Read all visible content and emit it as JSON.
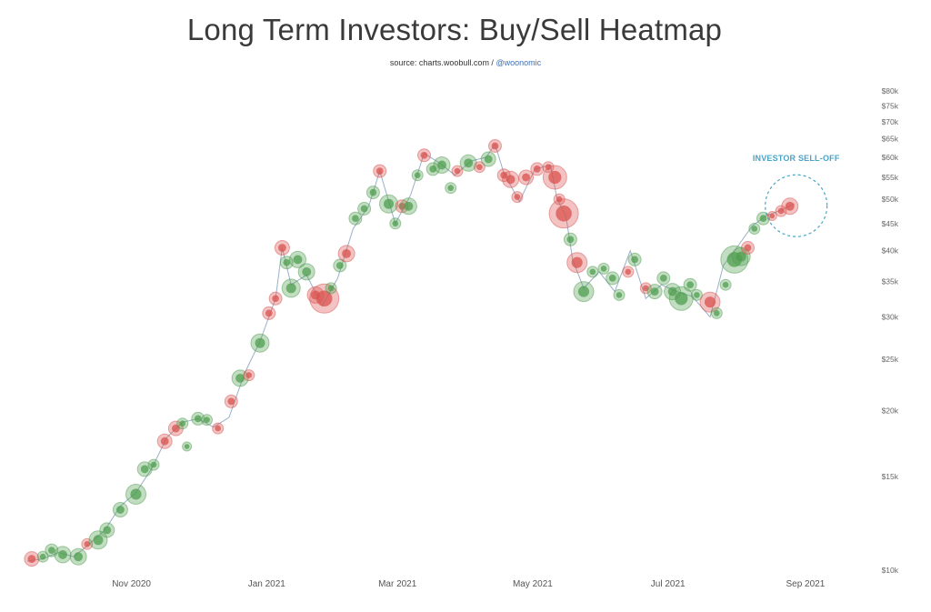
{
  "chart_data": {
    "type": "scatter",
    "title": "Long Term Investors: Buy/Sell Heatmap",
    "subtitle": {
      "text": "source: charts.woobull.com / ",
      "handle": "@woonomic"
    },
    "xlabel": "",
    "ylabel": "",
    "y_scale": "log",
    "ylim": [
      10000,
      80000
    ],
    "xlim": [
      "2020-09-15",
      "2021-09-15"
    ],
    "x_ticks": [
      {
        "date": "2020-11-01",
        "label": "Nov 2020"
      },
      {
        "date": "2021-01-01",
        "label": "Jan 2021"
      },
      {
        "date": "2021-03-01",
        "label": "Mar 2021"
      },
      {
        "date": "2021-05-01",
        "label": "May 2021"
      },
      {
        "date": "2021-07-01",
        "label": "Jul 2021"
      },
      {
        "date": "2021-09-01",
        "label": "Sep 2021"
      }
    ],
    "y_ticks": [
      {
        "value": 10000,
        "label": "$10k"
      },
      {
        "value": 15000,
        "label": "$15k"
      },
      {
        "value": 20000,
        "label": "$20k"
      },
      {
        "value": 25000,
        "label": "$25k"
      },
      {
        "value": 30000,
        "label": "$30k"
      },
      {
        "value": 35000,
        "label": "$35k"
      },
      {
        "value": 40000,
        "label": "$40k"
      },
      {
        "value": 45000,
        "label": "$45k"
      },
      {
        "value": 50000,
        "label": "$50k"
      },
      {
        "value": 55000,
        "label": "$55k"
      },
      {
        "value": 60000,
        "label": "$60k"
      },
      {
        "value": 65000,
        "label": "$65k"
      },
      {
        "value": 70000,
        "label": "$70k"
      },
      {
        "value": 75000,
        "label": "$75k"
      },
      {
        "value": 80000,
        "label": "$80k"
      }
    ],
    "grid": false,
    "colors": {
      "buy": "#4f9e4f",
      "sell": "#d9534f",
      "line": "#6f8fb0",
      "annotation": "#4aa3c9"
    },
    "annotation": {
      "text": "INVESTOR SELL-OFF",
      "date": "2021-08-27",
      "value": 49000
    },
    "price": [
      [
        "2020-09-15",
        10400
      ],
      [
        "2020-09-22",
        10500
      ],
      [
        "2020-09-29",
        10800
      ],
      [
        "2020-10-06",
        10600
      ],
      [
        "2020-10-13",
        11200
      ],
      [
        "2020-10-20",
        11900
      ],
      [
        "2020-10-27",
        13200
      ],
      [
        "2020-11-03",
        14000
      ],
      [
        "2020-11-10",
        15500
      ],
      [
        "2020-11-17",
        17800
      ],
      [
        "2020-11-24",
        19000
      ],
      [
        "2020-12-01",
        19300
      ],
      [
        "2020-12-08",
        18600
      ],
      [
        "2020-12-15",
        19400
      ],
      [
        "2020-12-22",
        23500
      ],
      [
        "2020-12-29",
        27000
      ],
      [
        "2021-01-05",
        32500
      ],
      [
        "2021-01-08",
        40500
      ],
      [
        "2021-01-12",
        34500
      ],
      [
        "2021-01-19",
        36000
      ],
      [
        "2021-01-26",
        31500
      ],
      [
        "2021-02-02",
        35500
      ],
      [
        "2021-02-09",
        44000
      ],
      [
        "2021-02-16",
        48500
      ],
      [
        "2021-02-21",
        56500
      ],
      [
        "2021-02-28",
        45000
      ],
      [
        "2021-03-07",
        51000
      ],
      [
        "2021-03-13",
        61000
      ],
      [
        "2021-03-20",
        58500
      ],
      [
        "2021-03-27",
        55500
      ],
      [
        "2021-04-03",
        59000
      ],
      [
        "2021-04-10",
        60000
      ],
      [
        "2021-04-14",
        63500
      ],
      [
        "2021-04-18",
        56000
      ],
      [
        "2021-04-25",
        49500
      ],
      [
        "2021-05-02",
        57000
      ],
      [
        "2021-05-09",
        58000
      ],
      [
        "2021-05-12",
        50000
      ],
      [
        "2021-05-16",
        46500
      ],
      [
        "2021-05-19",
        38500
      ],
      [
        "2021-05-24",
        34000
      ],
      [
        "2021-05-31",
        36500
      ],
      [
        "2021-06-07",
        33500
      ],
      [
        "2021-06-14",
        40000
      ],
      [
        "2021-06-21",
        32500
      ],
      [
        "2021-06-28",
        34500
      ],
      [
        "2021-07-05",
        33500
      ],
      [
        "2021-07-12",
        32800
      ],
      [
        "2021-07-20",
        30000
      ],
      [
        "2021-07-26",
        37500
      ],
      [
        "2021-08-01",
        40500
      ],
      [
        "2021-08-08",
        44500
      ],
      [
        "2021-08-14",
        46500
      ],
      [
        "2021-08-20",
        47500
      ],
      [
        "2021-08-27",
        49000
      ]
    ],
    "bubbles": [
      [
        "2020-09-17",
        10500,
        "sell",
        8
      ],
      [
        "2020-09-22",
        10600,
        "buy",
        6
      ],
      [
        "2020-09-26",
        10900,
        "buy",
        7
      ],
      [
        "2020-10-01",
        10700,
        "buy",
        9
      ],
      [
        "2020-10-08",
        10600,
        "buy",
        9
      ],
      [
        "2020-10-12",
        11200,
        "sell",
        6
      ],
      [
        "2020-10-17",
        11400,
        "buy",
        10
      ],
      [
        "2020-10-21",
        11900,
        "buy",
        8
      ],
      [
        "2020-10-27",
        13000,
        "buy",
        8
      ],
      [
        "2020-11-03",
        13900,
        "buy",
        11
      ],
      [
        "2020-11-07",
        15500,
        "buy",
        8
      ],
      [
        "2020-11-11",
        15800,
        "buy",
        6
      ],
      [
        "2020-11-16",
        17500,
        "sell",
        8
      ],
      [
        "2020-11-21",
        18500,
        "sell",
        8
      ],
      [
        "2020-11-24",
        18900,
        "buy",
        6
      ],
      [
        "2020-11-26",
        17100,
        "buy",
        5
      ],
      [
        "2020-12-01",
        19300,
        "buy",
        7
      ],
      [
        "2020-12-05",
        19200,
        "buy",
        6
      ],
      [
        "2020-12-10",
        18500,
        "sell",
        6
      ],
      [
        "2020-12-16",
        20800,
        "sell",
        7
      ],
      [
        "2020-12-20",
        23000,
        "buy",
        9
      ],
      [
        "2020-12-24",
        23300,
        "sell",
        6
      ],
      [
        "2020-12-29",
        26800,
        "buy",
        10
      ],
      [
        "2021-01-02",
        30500,
        "sell",
        7
      ],
      [
        "2021-01-05",
        32500,
        "sell",
        7
      ],
      [
        "2021-01-08",
        40500,
        "sell",
        8
      ],
      [
        "2021-01-10",
        38000,
        "buy",
        7
      ],
      [
        "2021-01-12",
        34000,
        "buy",
        10
      ],
      [
        "2021-01-15",
        38500,
        "buy",
        9
      ],
      [
        "2021-01-19",
        36500,
        "buy",
        9
      ],
      [
        "2021-01-23",
        33000,
        "sell",
        9
      ],
      [
        "2021-01-27",
        32500,
        "sell",
        16
      ],
      [
        "2021-01-30",
        34000,
        "buy",
        6
      ],
      [
        "2021-02-03",
        37500,
        "buy",
        7
      ],
      [
        "2021-02-06",
        39500,
        "sell",
        9
      ],
      [
        "2021-02-10",
        46000,
        "buy",
        7
      ],
      [
        "2021-02-14",
        48000,
        "buy",
        7
      ],
      [
        "2021-02-18",
        51500,
        "buy",
        7
      ],
      [
        "2021-02-21",
        56500,
        "sell",
        7
      ],
      [
        "2021-02-25",
        49000,
        "buy",
        10
      ],
      [
        "2021-02-28",
        45000,
        "buy",
        6
      ],
      [
        "2021-03-03",
        48500,
        "sell",
        7
      ],
      [
        "2021-03-06",
        48500,
        "buy",
        9
      ],
      [
        "2021-03-10",
        55500,
        "buy",
        6
      ],
      [
        "2021-03-13",
        60500,
        "sell",
        7
      ],
      [
        "2021-03-17",
        57000,
        "buy",
        7
      ],
      [
        "2021-03-21",
        58000,
        "buy",
        9
      ],
      [
        "2021-03-25",
        52500,
        "buy",
        6
      ],
      [
        "2021-03-28",
        56500,
        "sell",
        6
      ],
      [
        "2021-04-02",
        58500,
        "buy",
        9
      ],
      [
        "2021-04-07",
        57500,
        "sell",
        6
      ],
      [
        "2021-04-11",
        59500,
        "buy",
        8
      ],
      [
        "2021-04-14",
        63000,
        "sell",
        7
      ],
      [
        "2021-04-18",
        55500,
        "sell",
        7
      ],
      [
        "2021-04-21",
        54500,
        "sell",
        9
      ],
      [
        "2021-04-24",
        50500,
        "sell",
        6
      ],
      [
        "2021-04-28",
        55000,
        "sell",
        8
      ],
      [
        "2021-05-03",
        57000,
        "sell",
        7
      ],
      [
        "2021-05-08",
        57500,
        "sell",
        6
      ],
      [
        "2021-05-11",
        55000,
        "sell",
        13
      ],
      [
        "2021-05-13",
        50000,
        "sell",
        6
      ],
      [
        "2021-05-15",
        47000,
        "sell",
        16
      ],
      [
        "2021-05-18",
        42000,
        "buy",
        7
      ],
      [
        "2021-05-21",
        38000,
        "sell",
        11
      ],
      [
        "2021-05-24",
        33500,
        "buy",
        11
      ],
      [
        "2021-05-28",
        36500,
        "buy",
        6
      ],
      [
        "2021-06-02",
        37000,
        "buy",
        6
      ],
      [
        "2021-06-06",
        35500,
        "buy",
        7
      ],
      [
        "2021-06-09",
        33000,
        "buy",
        6
      ],
      [
        "2021-06-13",
        36500,
        "sell",
        6
      ],
      [
        "2021-06-16",
        38500,
        "buy",
        7
      ],
      [
        "2021-06-21",
        34000,
        "sell",
        6
      ],
      [
        "2021-06-25",
        33500,
        "buy",
        8
      ],
      [
        "2021-06-29",
        35500,
        "buy",
        7
      ],
      [
        "2021-07-03",
        33500,
        "buy",
        9
      ],
      [
        "2021-07-07",
        32500,
        "buy",
        13
      ],
      [
        "2021-07-11",
        34500,
        "buy",
        7
      ],
      [
        "2021-07-14",
        33000,
        "buy",
        6
      ],
      [
        "2021-07-20",
        32000,
        "sell",
        11
      ],
      [
        "2021-07-23",
        30500,
        "buy",
        6
      ],
      [
        "2021-07-27",
        34500,
        "buy",
        6
      ],
      [
        "2021-07-31",
        38500,
        "buy",
        15
      ],
      [
        "2021-08-03",
        39000,
        "buy",
        10
      ],
      [
        "2021-08-06",
        40500,
        "sell",
        7
      ],
      [
        "2021-08-09",
        44000,
        "buy",
        6
      ],
      [
        "2021-08-13",
        46000,
        "buy",
        7
      ],
      [
        "2021-08-17",
        46500,
        "sell",
        5
      ],
      [
        "2021-08-21",
        47500,
        "sell",
        6
      ],
      [
        "2021-08-25",
        48500,
        "sell",
        9
      ]
    ]
  }
}
